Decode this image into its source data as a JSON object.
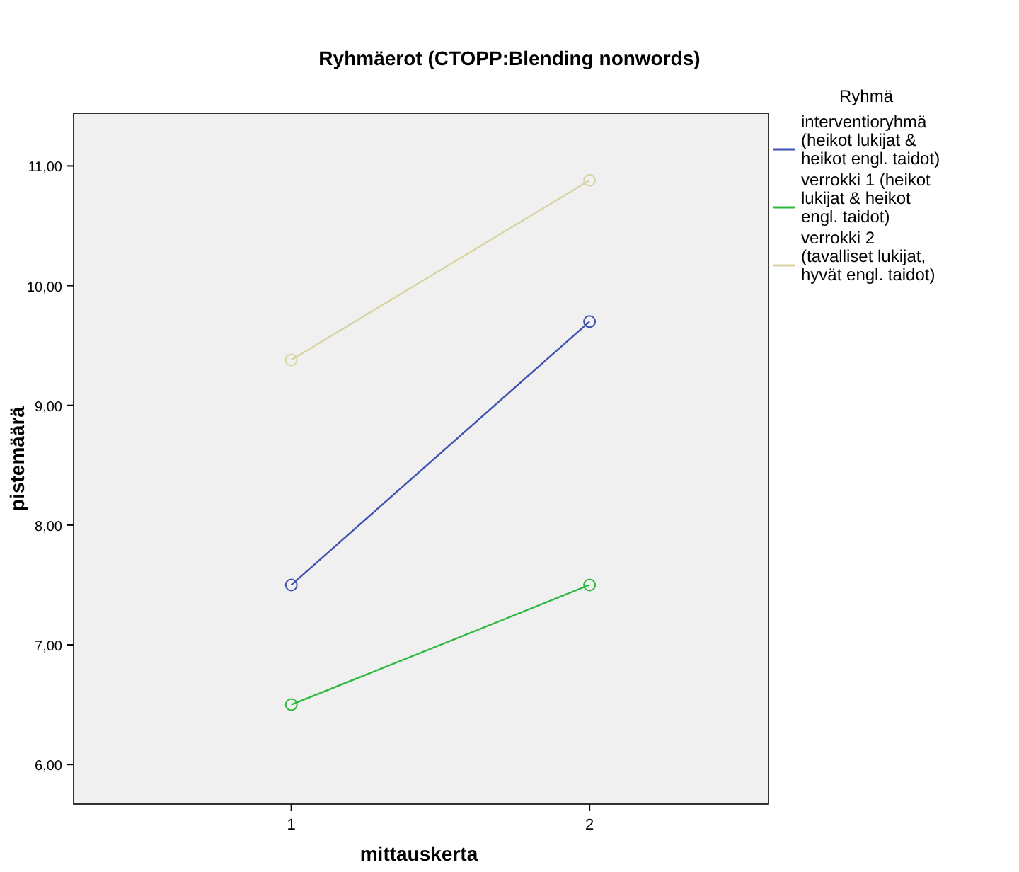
{
  "chart_data": {
    "type": "line",
    "title": "Ryhmäerot (CTOPP:Blending nonwords)",
    "xlabel": "mittauskerta",
    "ylabel": "pistemäärä",
    "legend_title": "Ryhmä",
    "x": [
      1,
      2
    ],
    "xlim": [
      0.27,
      2.6
    ],
    "xticks": [
      1,
      2
    ],
    "ylim": [
      5.67,
      11.44
    ],
    "yticks": [
      {
        "value": 6,
        "label": "6,00"
      },
      {
        "value": 7,
        "label": "7,00"
      },
      {
        "value": 8,
        "label": "8,00"
      },
      {
        "value": 9,
        "label": "9,00"
      },
      {
        "value": 10,
        "label": "10,00"
      },
      {
        "value": 11,
        "label": "11,00"
      }
    ],
    "grid": false,
    "legend": "right",
    "marker": "circle",
    "line_style": "solid",
    "series": [
      {
        "name": "interventioryhmä (heikot lukijat & heikot engl. taidot)",
        "color": "#3f51b0",
        "values": [
          7.5,
          9.7
        ]
      },
      {
        "name": "verrokki 1 (heikot lukijat & heikot engl. taidot)",
        "color": "#2eb83f",
        "values": [
          6.5,
          7.5
        ]
      },
      {
        "name": "verrokki 2 (tavalliset lukijat, hyvät engl. taidot)",
        "color": "#d8d3a2",
        "values": [
          9.38,
          10.88
        ]
      }
    ]
  }
}
